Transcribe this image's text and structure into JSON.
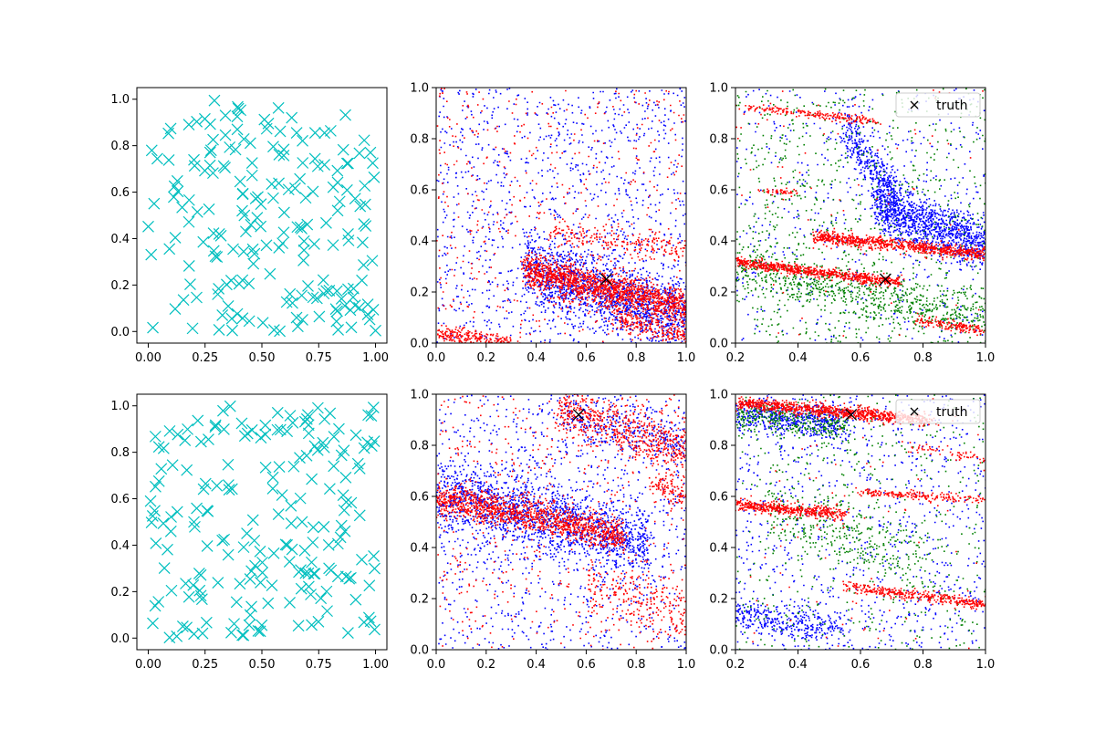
{
  "chart_data": [
    {
      "panel": "top-left",
      "type": "scatter",
      "marker": "x",
      "color": "#00bfbf",
      "xlim": [
        -0.05,
        1.05
      ],
      "ylim": [
        -0.05,
        1.05
      ],
      "xticks": [
        "0.00",
        "0.25",
        "0.50",
        "0.75",
        "1.00"
      ],
      "yticks": [
        "0.0",
        "0.2",
        "0.4",
        "0.6",
        "0.8",
        "1.0"
      ],
      "point_count": 200,
      "distribution": "uniform random in [0,1] x [0,1]"
    },
    {
      "panel": "top-middle",
      "type": "scatter",
      "xlim": [
        0,
        1
      ],
      "ylim": [
        0,
        1
      ],
      "xticks": [
        "0.0",
        "0.2",
        "0.4",
        "0.6",
        "0.8",
        "1.0"
      ],
      "yticks": [
        "0.0",
        "0.2",
        "0.4",
        "0.6",
        "0.8",
        "1.0"
      ],
      "truth_marker": {
        "x": 0.68,
        "y": 0.25,
        "color": "#000000"
      },
      "series": [
        {
          "color": "#0000ff",
          "dense_bands": [
            {
              "x": [
                0.35,
                1.0
              ],
              "y": [
                0.3,
                0.1
              ],
              "spread": 0.07,
              "count": 1400
            }
          ],
          "scatter_count": 1100
        },
        {
          "color": "#ff0000",
          "dense_bands": [
            {
              "x": [
                0.35,
                1.0
              ],
              "y": [
                0.29,
                0.14
              ],
              "spread": 0.035,
              "count": 1500
            },
            {
              "x": [
                0.0,
                0.3
              ],
              "y": [
                0.04,
                0.0
              ],
              "spread": 0.015,
              "count": 250
            },
            {
              "x": [
                0.45,
                1.0
              ],
              "y": [
                0.44,
                0.37
              ],
              "spread": 0.025,
              "count": 200
            },
            {
              "x": [
                0.7,
                1.0
              ],
              "y": [
                0.1,
                0.03
              ],
              "spread": 0.02,
              "count": 200
            }
          ],
          "scatter_count": 500
        }
      ]
    },
    {
      "panel": "top-right",
      "type": "scatter",
      "xlim": [
        0.2,
        1.0
      ],
      "ylim": [
        0,
        1
      ],
      "xticks": [
        "0.2",
        "0.4",
        "0.6",
        "0.8",
        "1.0"
      ],
      "yticks": [
        "0.0",
        "0.2",
        "0.4",
        "0.6",
        "0.8",
        "1.0"
      ],
      "legend": {
        "label": "truth",
        "position": "upper right"
      },
      "truth_marker": {
        "x": 0.68,
        "y": 0.25,
        "color": "#000000"
      },
      "series": [
        {
          "color": "#0000ff",
          "dense_bands": [
            {
              "x": [
                0.65,
                1.0
              ],
              "y": [
                0.55,
                0.38
              ],
              "spread": 0.05,
              "count": 1100
            },
            {
              "x": [
                0.55,
                0.72
              ],
              "y": [
                0.85,
                0.55
              ],
              "spread": 0.05,
              "count": 400
            }
          ],
          "scatter_count": 500
        },
        {
          "color": "#008000",
          "dense_bands": [
            {
              "x": [
                0.2,
                1.0
              ],
              "y": [
                0.3,
                0.1
              ],
              "spread": 0.05,
              "count": 700
            }
          ],
          "scatter_count": 800
        },
        {
          "color": "#ff0000",
          "dense_bands": [
            {
              "x": [
                0.2,
                0.72
              ],
              "y": [
                0.32,
                0.24
              ],
              "spread": 0.01,
              "count": 700
            },
            {
              "x": [
                0.45,
                1.0
              ],
              "y": [
                0.42,
                0.35
              ],
              "spread": 0.012,
              "count": 800
            },
            {
              "x": [
                0.2,
                0.65
              ],
              "y": [
                0.93,
                0.87
              ],
              "spread": 0.008,
              "count": 200
            },
            {
              "x": [
                0.78,
                1.0
              ],
              "y": [
                0.09,
                0.05
              ],
              "spread": 0.01,
              "count": 150
            },
            {
              "x": [
                0.28,
                0.4
              ],
              "y": [
                0.6,
                0.59
              ],
              "spread": 0.006,
              "count": 40
            }
          ],
          "scatter_count": 80
        }
      ]
    },
    {
      "panel": "bottom-left",
      "type": "scatter",
      "marker": "x",
      "color": "#00bfbf",
      "xlim": [
        -0.05,
        1.05
      ],
      "ylim": [
        -0.05,
        1.05
      ],
      "xticks": [
        "0.00",
        "0.25",
        "0.50",
        "0.75",
        "1.00"
      ],
      "yticks": [
        "0.0",
        "0.2",
        "0.4",
        "0.6",
        "0.8",
        "1.0"
      ],
      "point_count": 200,
      "distribution": "uniform random in [0,1] x [0,1]"
    },
    {
      "panel": "bottom-middle",
      "type": "scatter",
      "xlim": [
        0,
        1
      ],
      "ylim": [
        0,
        1
      ],
      "xticks": [
        "0.0",
        "0.2",
        "0.4",
        "0.6",
        "0.8",
        "1.0"
      ],
      "yticks": [
        "0.0",
        "0.2",
        "0.4",
        "0.6",
        "0.8",
        "1.0"
      ],
      "truth_marker": {
        "x": 0.57,
        "y": 0.92,
        "color": "#000000"
      },
      "series": [
        {
          "color": "#0000ff",
          "dense_bands": [
            {
              "x": [
                0.0,
                0.85
              ],
              "y": [
                0.62,
                0.42
              ],
              "spread": 0.07,
              "count": 1500
            },
            {
              "x": [
                0.5,
                1.0
              ],
              "y": [
                0.95,
                0.8
              ],
              "spread": 0.05,
              "count": 300
            }
          ],
          "scatter_count": 1000
        },
        {
          "color": "#ff0000",
          "dense_bands": [
            {
              "x": [
                0.0,
                0.75
              ],
              "y": [
                0.6,
                0.45
              ],
              "spread": 0.03,
              "count": 1200
            },
            {
              "x": [
                0.48,
                1.0
              ],
              "y": [
                0.95,
                0.78
              ],
              "spread": 0.05,
              "count": 600
            },
            {
              "x": [
                0.6,
                1.0
              ],
              "y": [
                0.25,
                0.15
              ],
              "spread": 0.06,
              "count": 250
            },
            {
              "x": [
                0.85,
                1.0
              ],
              "y": [
                0.65,
                0.6
              ],
              "spread": 0.02,
              "count": 100
            }
          ],
          "scatter_count": 500
        }
      ]
    },
    {
      "panel": "bottom-right",
      "type": "scatter",
      "xlim": [
        0.2,
        1.0
      ],
      "ylim": [
        0,
        1
      ],
      "xticks": [
        "0.2",
        "0.4",
        "0.6",
        "0.8",
        "1.0"
      ],
      "yticks": [
        "0.0",
        "0.2",
        "0.4",
        "0.6",
        "0.8",
        "1.0"
      ],
      "legend": {
        "label": "truth",
        "position": "upper right"
      },
      "truth_marker": {
        "x": 0.57,
        "y": 0.92,
        "color": "#000000"
      },
      "series": [
        {
          "color": "#0000ff",
          "dense_bands": [
            {
              "x": [
                0.2,
                0.55
              ],
              "y": [
                0.93,
                0.88
              ],
              "spread": 0.03,
              "count": 500
            },
            {
              "x": [
                0.2,
                0.55
              ],
              "y": [
                0.14,
                0.08
              ],
              "spread": 0.03,
              "count": 300
            }
          ],
          "scatter_count": 900
        },
        {
          "color": "#008000",
          "dense_bands": [
            {
              "x": [
                0.2,
                0.55
              ],
              "y": [
                0.92,
                0.87
              ],
              "spread": 0.03,
              "count": 300
            },
            {
              "x": [
                0.3,
                0.8
              ],
              "y": [
                0.55,
                0.35
              ],
              "spread": 0.07,
              "count": 300
            }
          ],
          "scatter_count": 500
        },
        {
          "color": "#ff0000",
          "dense_bands": [
            {
              "x": [
                0.2,
                0.82
              ],
              "y": [
                0.97,
                0.9
              ],
              "spread": 0.012,
              "count": 900
            },
            {
              "x": [
                0.2,
                0.55
              ],
              "y": [
                0.57,
                0.53
              ],
              "spread": 0.012,
              "count": 450
            },
            {
              "x": [
                0.55,
                1.0
              ],
              "y": [
                0.25,
                0.18
              ],
              "spread": 0.01,
              "count": 350
            },
            {
              "x": [
                0.6,
                1.0
              ],
              "y": [
                0.62,
                0.59
              ],
              "spread": 0.008,
              "count": 200
            },
            {
              "x": [
                0.75,
                1.0
              ],
              "y": [
                0.8,
                0.75
              ],
              "spread": 0.01,
              "count": 60
            }
          ],
          "scatter_count": 80
        }
      ]
    }
  ]
}
